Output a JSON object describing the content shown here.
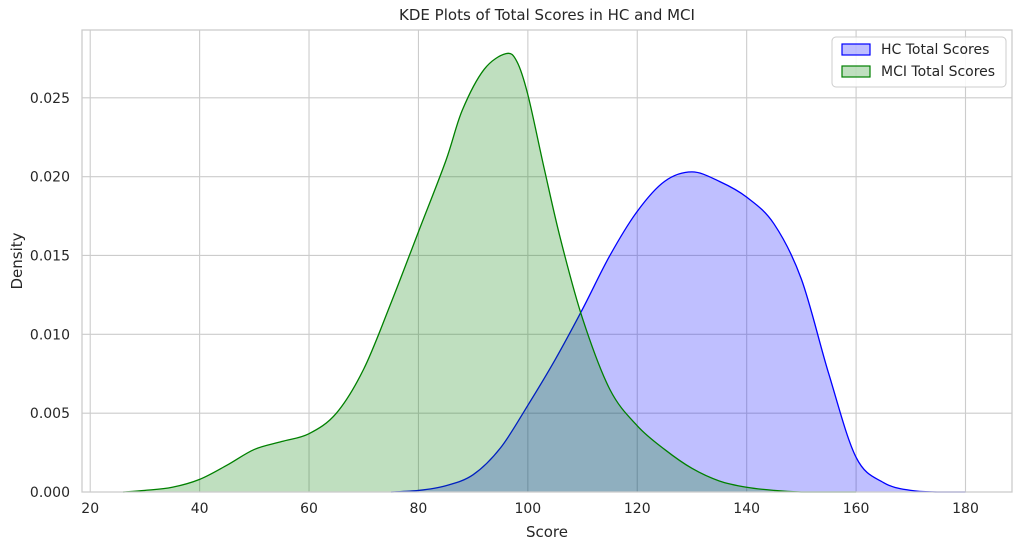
{
  "chart_data": {
    "type": "area",
    "title": "KDE Plots of Total Scores in HC and MCI",
    "xlabel": "Score",
    "ylabel": "Density",
    "xlim": [
      18.5,
      188.5
    ],
    "ylim": [
      0,
      0.0293
    ],
    "xticks": [
      20,
      40,
      60,
      80,
      100,
      120,
      140,
      160,
      180
    ],
    "yticks": [
      "0.000",
      "0.005",
      "0.010",
      "0.015",
      "0.020",
      "0.025"
    ],
    "grid": true,
    "legend_position": "top-right",
    "series": [
      {
        "name": "HC Total Scores",
        "line_color": "#0000ff",
        "fill_color": "#0000ff",
        "fill_opacity": 0.25,
        "x": [
          75,
          80,
          85,
          90,
          95,
          100,
          105,
          110,
          115,
          120,
          125,
          130,
          135,
          140,
          145,
          150,
          155,
          160,
          165,
          170,
          175,
          180
        ],
        "y": [
          0.0,
          0.0001,
          0.0004,
          0.0011,
          0.0028,
          0.0055,
          0.0084,
          0.0116,
          0.015,
          0.0178,
          0.0197,
          0.0203,
          0.0197,
          0.0187,
          0.017,
          0.0135,
          0.0075,
          0.0022,
          0.0006,
          0.0001,
          0.0,
          0.0
        ]
      },
      {
        "name": "MCI Total Scores",
        "line_color": "#008000",
        "fill_color": "#008000",
        "fill_opacity": 0.25,
        "x": [
          26,
          30,
          35,
          40,
          45,
          50,
          55,
          60,
          65,
          70,
          75,
          80,
          85,
          88,
          92,
          96,
          98,
          100,
          103,
          106,
          110,
          115,
          120,
          125,
          130,
          135,
          140,
          145,
          150,
          155,
          160
        ],
        "y": [
          0.0,
          0.0001,
          0.0003,
          0.0008,
          0.0017,
          0.0027,
          0.0032,
          0.0037,
          0.005,
          0.0078,
          0.012,
          0.0165,
          0.021,
          0.0242,
          0.0268,
          0.0278,
          0.0273,
          0.0252,
          0.0205,
          0.016,
          0.011,
          0.0065,
          0.0042,
          0.0027,
          0.0015,
          0.0007,
          0.0003,
          0.0001,
          0.0,
          0.0,
          0.0
        ]
      }
    ]
  }
}
